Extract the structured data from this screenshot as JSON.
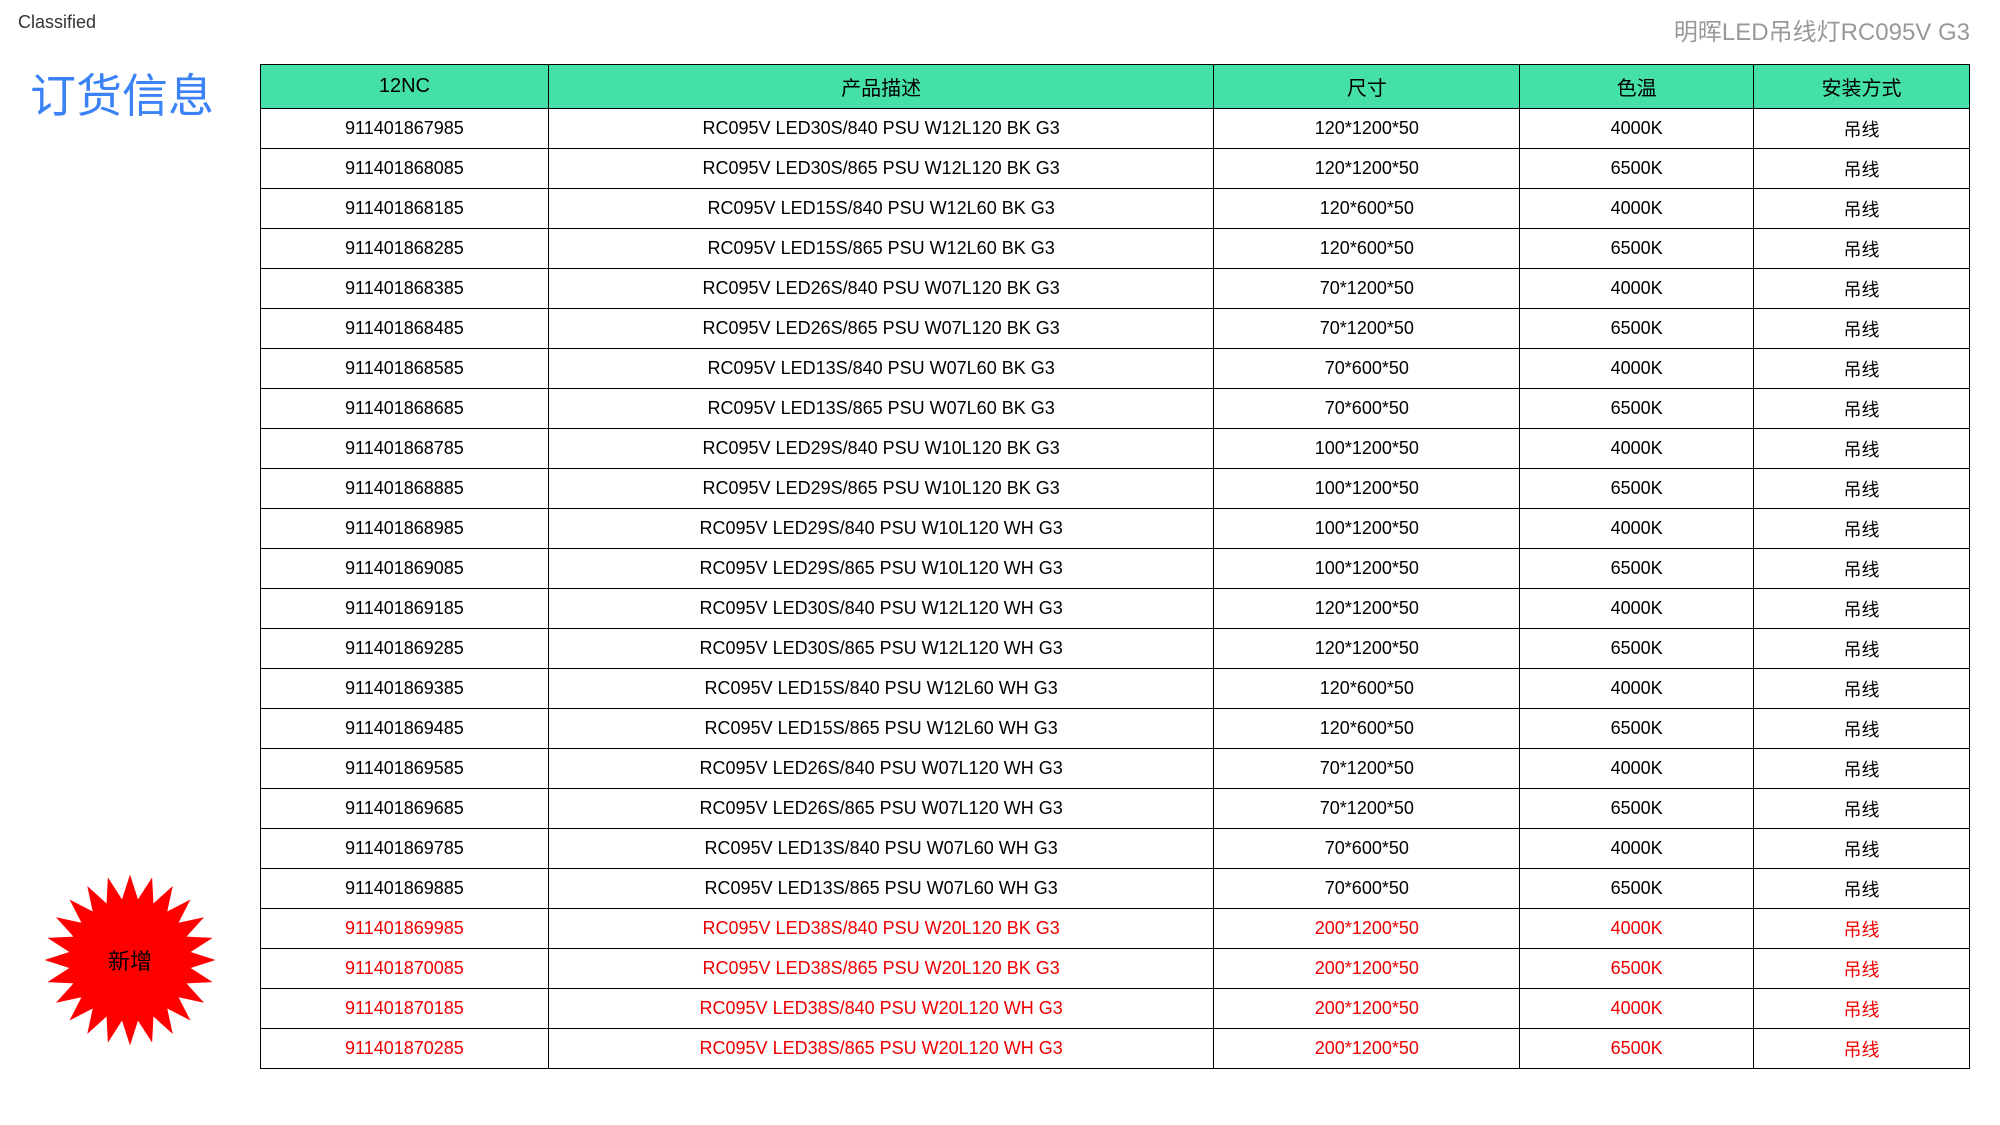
{
  "classified_label": "Classified",
  "header_right": "明晖LED吊线灯RC095V G3",
  "page_title": "订货信息",
  "badge_label": "新增",
  "colors": {
    "header_bg": "#45e0a7",
    "title_color": "#3b82f6",
    "new_row_color": "#f00000",
    "border_color": "#000000",
    "badge_fill": "#ff0000",
    "badge_text": "#000000",
    "header_right_color": "#999999"
  },
  "table": {
    "columns": [
      "12NC",
      "产品描述",
      "尺寸",
      "色温",
      "安装方式"
    ],
    "col_widths_pct": [
      16,
      37,
      17,
      13,
      12
    ],
    "rows": [
      {
        "nc": "911401867985",
        "desc": "RC095V LED30S/840 PSU W12L120 BK G3",
        "size": "120*1200*50",
        "temp": "4000K",
        "mount": "吊线",
        "new": false
      },
      {
        "nc": "911401868085",
        "desc": "RC095V LED30S/865 PSU W12L120 BK G3",
        "size": "120*1200*50",
        "temp": "6500K",
        "mount": "吊线",
        "new": false
      },
      {
        "nc": "911401868185",
        "desc": "RC095V LED15S/840 PSU W12L60 BK G3",
        "size": "120*600*50",
        "temp": "4000K",
        "mount": "吊线",
        "new": false
      },
      {
        "nc": "911401868285",
        "desc": "RC095V LED15S/865 PSU W12L60 BK G3",
        "size": "120*600*50",
        "temp": "6500K",
        "mount": "吊线",
        "new": false
      },
      {
        "nc": "911401868385",
        "desc": "RC095V LED26S/840 PSU W07L120 BK G3",
        "size": "70*1200*50",
        "temp": "4000K",
        "mount": "吊线",
        "new": false
      },
      {
        "nc": "911401868485",
        "desc": "RC095V LED26S/865 PSU W07L120 BK G3",
        "size": "70*1200*50",
        "temp": "6500K",
        "mount": "吊线",
        "new": false
      },
      {
        "nc": "911401868585",
        "desc": "RC095V LED13S/840 PSU W07L60 BK G3",
        "size": "70*600*50",
        "temp": "4000K",
        "mount": "吊线",
        "new": false
      },
      {
        "nc": "911401868685",
        "desc": "RC095V LED13S/865 PSU W07L60 BK G3",
        "size": "70*600*50",
        "temp": "6500K",
        "mount": "吊线",
        "new": false
      },
      {
        "nc": "911401868785",
        "desc": "RC095V LED29S/840 PSU W10L120 BK G3",
        "size": "100*1200*50",
        "temp": "4000K",
        "mount": "吊线",
        "new": false
      },
      {
        "nc": "911401868885",
        "desc": "RC095V LED29S/865 PSU W10L120 BK G3",
        "size": "100*1200*50",
        "temp": "6500K",
        "mount": "吊线",
        "new": false
      },
      {
        "nc": "911401868985",
        "desc": "RC095V LED29S/840 PSU W10L120 WH G3",
        "size": "100*1200*50",
        "temp": "4000K",
        "mount": "吊线",
        "new": false
      },
      {
        "nc": "911401869085",
        "desc": "RC095V LED29S/865 PSU W10L120 WH G3",
        "size": "100*1200*50",
        "temp": "6500K",
        "mount": "吊线",
        "new": false
      },
      {
        "nc": "911401869185",
        "desc": "RC095V LED30S/840 PSU W12L120 WH G3",
        "size": "120*1200*50",
        "temp": "4000K",
        "mount": "吊线",
        "new": false
      },
      {
        "nc": "911401869285",
        "desc": "RC095V LED30S/865 PSU W12L120 WH G3",
        "size": "120*1200*50",
        "temp": "6500K",
        "mount": "吊线",
        "new": false
      },
      {
        "nc": "911401869385",
        "desc": "RC095V LED15S/840 PSU W12L60 WH G3",
        "size": "120*600*50",
        "temp": "4000K",
        "mount": "吊线",
        "new": false
      },
      {
        "nc": "911401869485",
        "desc": "RC095V LED15S/865 PSU W12L60 WH G3",
        "size": "120*600*50",
        "temp": "6500K",
        "mount": "吊线",
        "new": false
      },
      {
        "nc": "911401869585",
        "desc": "RC095V LED26S/840 PSU W07L120 WH G3",
        "size": "70*1200*50",
        "temp": "4000K",
        "mount": "吊线",
        "new": false
      },
      {
        "nc": "911401869685",
        "desc": "RC095V LED26S/865 PSU W07L120 WH G3",
        "size": "70*1200*50",
        "temp": "6500K",
        "mount": "吊线",
        "new": false
      },
      {
        "nc": "911401869785",
        "desc": "RC095V LED13S/840 PSU W07L60 WH G3",
        "size": "70*600*50",
        "temp": "4000K",
        "mount": "吊线",
        "new": false
      },
      {
        "nc": "911401869885",
        "desc": "RC095V LED13S/865 PSU W07L60 WH G3",
        "size": "70*600*50",
        "temp": "6500K",
        "mount": "吊线",
        "new": false
      },
      {
        "nc": "911401869985",
        "desc": "RC095V LED38S/840 PSU W20L120 BK G3",
        "size": "200*1200*50",
        "temp": "4000K",
        "mount": "吊线",
        "new": true
      },
      {
        "nc": "911401870085",
        "desc": "RC095V LED38S/865 PSU W20L120 BK G3",
        "size": "200*1200*50",
        "temp": "6500K",
        "mount": "吊线",
        "new": true
      },
      {
        "nc": "911401870185",
        "desc": "RC095V LED38S/840 PSU W20L120 WH G3",
        "size": "200*1200*50",
        "temp": "4000K",
        "mount": "吊线",
        "new": true
      },
      {
        "nc": "911401870285",
        "desc": "RC095V LED38S/865 PSU W20L120 WH G3",
        "size": "200*1200*50",
        "temp": "6500K",
        "mount": "吊线",
        "new": true
      }
    ]
  }
}
